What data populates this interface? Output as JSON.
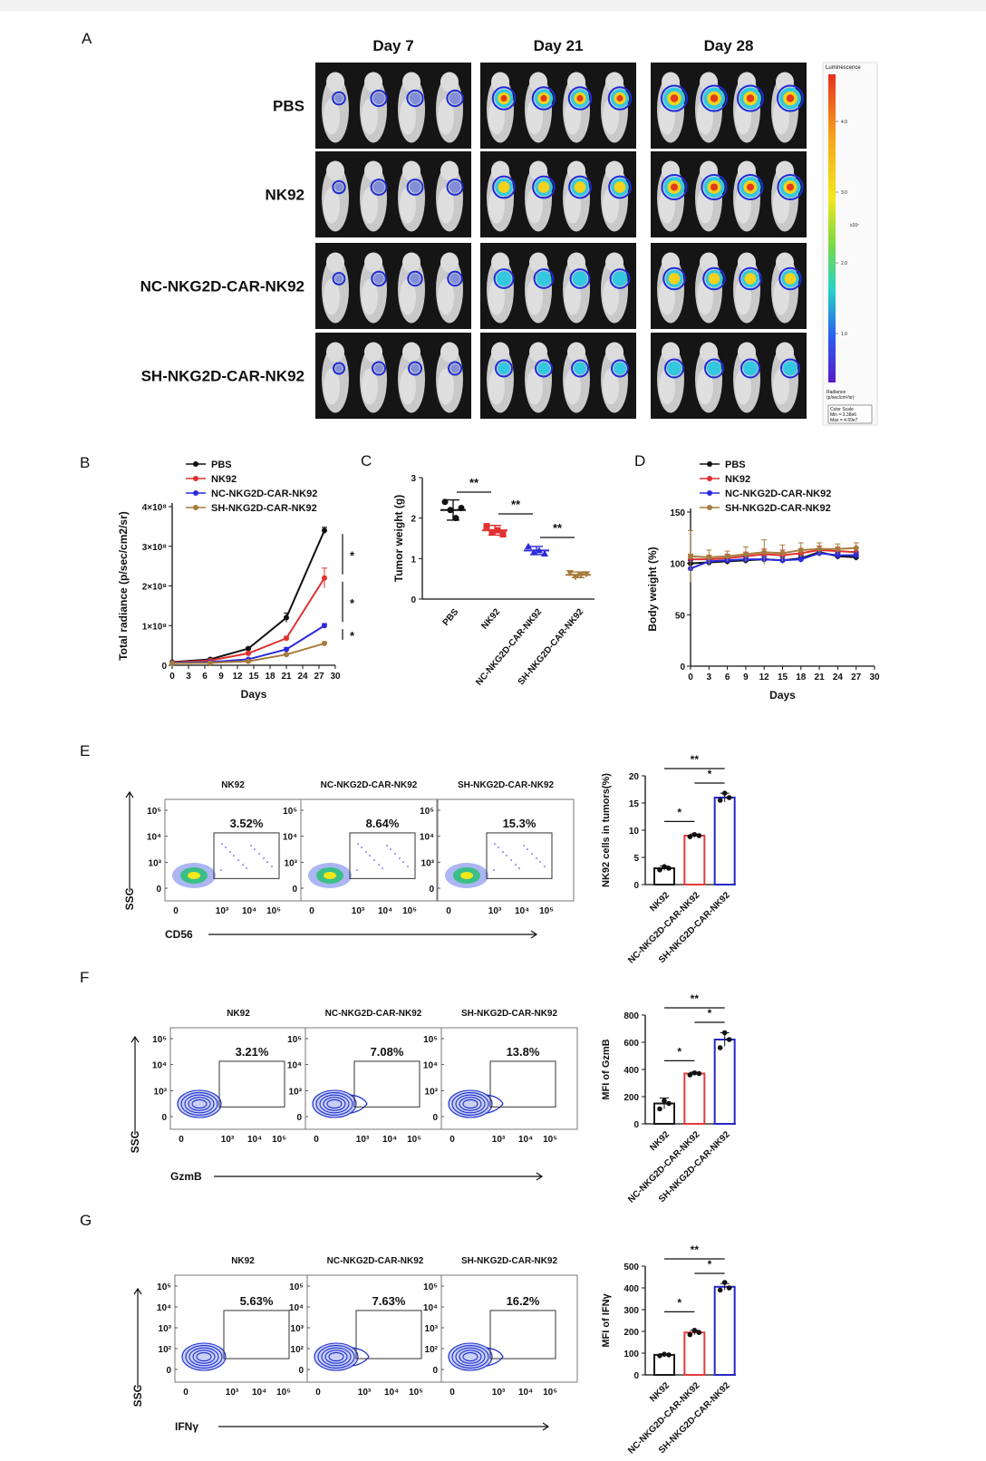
{
  "panel_letters": {
    "A": "A",
    "B": "B",
    "C": "C",
    "D": "D",
    "E": "E",
    "F": "F",
    "G": "G"
  },
  "panel_a": {
    "days": [
      "Day 7",
      "Day 21",
      "Day 28"
    ],
    "groups": [
      "PBS",
      "NK92",
      "NC-NKG2D-CAR-NK92",
      "SH-NKG2D-CAR-NK92"
    ],
    "signal_levels": [
      [
        1,
        2,
        2,
        2
      ],
      [
        4,
        4,
        4,
        4
      ],
      [
        5,
        5,
        5,
        5
      ]
    ],
    "group_signal": [
      1.0,
      0.95,
      0.75,
      0.55
    ],
    "colorbar": {
      "title": "Luminescence",
      "ticks": [
        "4.0",
        "3.0",
        "2.0",
        "1.0"
      ],
      "exponent": "x10⁷",
      "units": "Radiance\n(p/sec/cm²/sr)",
      "scale_box": [
        "Color Scale",
        "Min = 3.38e6",
        "Max = 4.69e7"
      ]
    }
  },
  "colors": {
    "PBS": "#111111",
    "NK92": "#e03030",
    "NC": "#2a2adc",
    "SH": "#a67c3c",
    "E": "#1a1a1a",
    "R": "#e23b3b",
    "B": "#2727c8"
  },
  "chart_data": [
    {
      "id": "B",
      "type": "line",
      "xlabel": "Days",
      "ylabel": "Total radiance (p/sec/cm2/sr)",
      "xlim": [
        0,
        30
      ],
      "ylim": [
        0,
        400000000.0
      ],
      "xticks": [
        "0",
        "3",
        "6",
        "9",
        "12",
        "15",
        "18",
        "21",
        "24",
        "27",
        "30"
      ],
      "yticks": [
        {
          "v": 0,
          "t": "0"
        },
        {
          "v": 100000000.0,
          "t": "1×10⁸"
        },
        {
          "v": 200000000.0,
          "t": "2×10⁸"
        },
        {
          "v": 300000000.0,
          "t": "3×10⁸"
        },
        {
          "v": 400000000.0,
          "t": "4×10⁸"
        }
      ],
      "legend": "top",
      "significance": [
        "*",
        "*",
        "*"
      ],
      "series": [
        {
          "name": "PBS",
          "color": "#111111",
          "x": [
            0,
            7,
            14,
            21,
            28
          ],
          "y": [
            8000000.0,
            15000000.0,
            42000000.0,
            120000000.0,
            340000000.0
          ],
          "err": [
            1000000.0,
            2000000.0,
            3000000.0,
            12000000.0,
            8000000.0
          ]
        },
        {
          "name": "NK92",
          "color": "#e03030",
          "x": [
            0,
            7,
            14,
            21,
            28
          ],
          "y": [
            7000000.0,
            12000000.0,
            30000000.0,
            68000000.0,
            220000000.0
          ],
          "err": [
            1000000.0,
            1000000.0,
            3000000.0,
            5000000.0,
            25000000.0
          ]
        },
        {
          "name": "NC-NKG2D-CAR-NK92",
          "color": "#2a2adc",
          "x": [
            0,
            7,
            14,
            21,
            28
          ],
          "y": [
            6000000.0,
            8000000.0,
            15000000.0,
            40000000.0,
            100000000.0
          ],
          "err": [
            1000000.0,
            1000000.0,
            2000000.0,
            4000000.0,
            5000000.0
          ]
        },
        {
          "name": "SH-NKG2D-CAR-NK92",
          "color": "#a67c3c",
          "x": [
            0,
            7,
            14,
            21,
            28
          ],
          "y": [
            5000000.0,
            6000000.0,
            10000000.0,
            27000000.0,
            55000000.0
          ],
          "err": [
            1000000.0,
            1000000.0,
            1000000.0,
            3000000.0,
            4000000.0
          ]
        }
      ]
    },
    {
      "id": "C",
      "type": "scatter",
      "ylabel": "Tumor weight (g)",
      "ylim": [
        0,
        3
      ],
      "yticks": [
        "0",
        "1",
        "2",
        "3"
      ],
      "categories": [
        "PBS",
        "NK92",
        "NC-NKG2D-CAR-NK92",
        "SH-NKG2D-CAR-NK92"
      ],
      "colors": [
        "#111111",
        "#e03030",
        "#2a2adc",
        "#a67c3c"
      ],
      "markers": [
        "circle",
        "square",
        "triangle",
        "triangle-down"
      ],
      "points": [
        [
          2.4,
          2.2,
          2.0,
          2.25
        ],
        [
          1.8,
          1.65,
          1.7,
          1.6
        ],
        [
          1.3,
          1.15,
          1.2,
          1.12
        ],
        [
          0.65,
          0.55,
          0.6,
          0.62
        ]
      ],
      "mean": [
        2.2,
        1.7,
        1.2,
        0.6
      ],
      "sd": [
        0.25,
        0.12,
        0.1,
        0.07
      ],
      "significance": [
        "**",
        "**",
        "**"
      ]
    },
    {
      "id": "D",
      "type": "line",
      "xlabel": "Days",
      "ylabel": "Body weight (%)",
      "xlim": [
        0,
        30
      ],
      "ylim": [
        0,
        150
      ],
      "xticks": [
        "0",
        "3",
        "6",
        "9",
        "12",
        "15",
        "18",
        "21",
        "24",
        "27",
        "30"
      ],
      "yticks": [
        "0",
        "50",
        "100",
        "150"
      ],
      "legend": "top",
      "series": [
        {
          "name": "PBS",
          "color": "#111111",
          "x": [
            0,
            3,
            6,
            9,
            12,
            15,
            18,
            21,
            24,
            27
          ],
          "y": [
            100,
            101,
            102,
            103,
            104,
            103,
            105,
            111,
            107,
            106
          ],
          "err": [
            3,
            3,
            3,
            3,
            3,
            3,
            3,
            3,
            3,
            3
          ]
        },
        {
          "name": "NK92",
          "color": "#e03030",
          "x": [
            0,
            3,
            6,
            9,
            12,
            15,
            18,
            21,
            24,
            27
          ],
          "y": [
            104,
            104,
            105,
            107,
            109,
            108,
            110,
            113,
            112,
            111
          ],
          "err": [
            5,
            4,
            4,
            4,
            5,
            5,
            4,
            4,
            4,
            4
          ]
        },
        {
          "name": "NC-NKG2D-CAR-NK92",
          "color": "#2a2adc",
          "x": [
            0,
            3,
            6,
            9,
            12,
            15,
            18,
            21,
            24,
            27
          ],
          "y": [
            95,
            102,
            103,
            104,
            104,
            103,
            104,
            110,
            108,
            108
          ],
          "err": [
            8,
            3,
            3,
            3,
            3,
            3,
            3,
            3,
            3,
            3
          ]
        },
        {
          "name": "SH-NKG2D-CAR-NK92",
          "color": "#a67c3c",
          "x": [
            0,
            3,
            6,
            9,
            12,
            15,
            18,
            21,
            24,
            27
          ],
          "y": [
            107,
            106,
            107,
            109,
            111,
            110,
            113,
            114,
            114,
            115
          ],
          "err": [
            25,
            7,
            5,
            7,
            12,
            8,
            7,
            6,
            5,
            5
          ]
        }
      ]
    },
    {
      "id": "E-flow",
      "type": "scatter",
      "xlabel": "CD56",
      "ylabel": "SSC",
      "style": "dot",
      "titles": [
        "NK92",
        "NC-NKG2D-CAR-NK92",
        "SH-NKG2D-CAR-NK92"
      ],
      "gates": [
        "3.52%",
        "8.64%",
        "15.3%"
      ],
      "yticks": [
        "10⁵",
        "10⁴",
        "10³",
        "0"
      ],
      "xticks": [
        "0",
        "10³",
        "10⁴",
        "10⁵"
      ]
    },
    {
      "id": "E-bar",
      "type": "bar",
      "ylabel": "NK92 cells in tumors(%)",
      "ylim": [
        0,
        20
      ],
      "yticks": [
        "0",
        "5",
        "10",
        "15",
        "20"
      ],
      "categories": [
        "NK92",
        "NC-NKG2D-CAR-NK92",
        "SH-NKG2D-CAR-NK92"
      ],
      "values": [
        3,
        9,
        16
      ],
      "points": [
        [
          2.7,
          3.3,
          3.0
        ],
        [
          8.8,
          9.2,
          9.0
        ],
        [
          15.5,
          16.8,
          16.0
        ]
      ],
      "err": [
        0.4,
        0.3,
        0.8
      ],
      "significance": [
        "*",
        "*",
        "**"
      ]
    },
    {
      "id": "F-flow",
      "type": "scatter",
      "xlabel": "GzmB",
      "ylabel": "SSC",
      "style": "contour",
      "titles": [
        "NK92",
        "NC-NKG2D-CAR-NK92",
        "SH-NKG2D-CAR-NK92"
      ],
      "gates": [
        "3.21%",
        "7.08%",
        "13.8%"
      ],
      "yticks": [
        "10⁵",
        "10⁴",
        "10³",
        "0"
      ],
      "xticks": [
        "0",
        "10³",
        "10⁴",
        "10⁵"
      ]
    },
    {
      "id": "F-bar",
      "type": "bar",
      "ylabel": "MFI of GzmB",
      "ylim": [
        0,
        800
      ],
      "yticks": [
        "0",
        "200",
        "400",
        "600",
        "800"
      ],
      "categories": [
        "NK92",
        "NC-NKG2D-CAR-NK92",
        "SH-NKG2D-CAR-NK92"
      ],
      "values": [
        150,
        370,
        620
      ],
      "points": [
        [
          110,
          170,
          150
        ],
        [
          360,
          375,
          370
        ],
        [
          560,
          670,
          620
        ]
      ],
      "err": [
        40,
        10,
        50
      ],
      "significance": [
        "*",
        "*",
        "**"
      ]
    },
    {
      "id": "G-flow",
      "type": "scatter",
      "xlabel": "IFNγ",
      "ylabel": "SSC",
      "style": "contour",
      "titles": [
        "NK92",
        "NC-NKG2D-CAR-NK92",
        "SH-NKG2D-CAR-NK92"
      ],
      "gates": [
        "5.63%",
        "7.63%",
        "16.2%"
      ],
      "yticks": [
        "10⁵",
        "10⁴",
        "10³",
        "10²",
        "0"
      ],
      "xticks": [
        "0",
        "10³",
        "10⁴",
        "10⁵"
      ]
    },
    {
      "id": "G-bar",
      "type": "bar",
      "ylabel": "MFI of IFNγ",
      "ylim": [
        0,
        500
      ],
      "yticks": [
        "0",
        "100",
        "200",
        "300",
        "400",
        "500"
      ],
      "categories": [
        "NK92",
        "NC-NKG2D-CAR-NK92",
        "SH-NKG2D-CAR-NK92"
      ],
      "values": [
        92,
        195,
        405
      ],
      "points": [
        [
          88,
          95,
          92
        ],
        [
          185,
          205,
          195
        ],
        [
          390,
          425,
          400
        ]
      ],
      "err": [
        5,
        10,
        15
      ],
      "significance": [
        "*",
        "*",
        "**"
      ]
    }
  ]
}
